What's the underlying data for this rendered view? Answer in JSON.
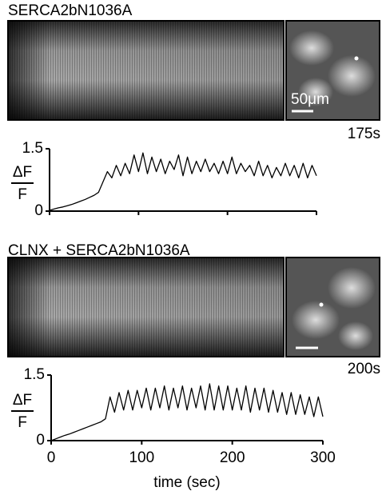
{
  "panels": [
    {
      "label": "SERCA2bN1036A",
      "scale_bar": "50μm",
      "time_label": "175s"
    },
    {
      "label": "CLNX + SERCA2bN1036A",
      "time_label": "200s"
    }
  ],
  "chart_data": [
    {
      "type": "line",
      "ylabel": [
        "ΔF",
        "F"
      ],
      "x": [
        0,
        5,
        10,
        15,
        20,
        25,
        30,
        35,
        40,
        45,
        50,
        55,
        60,
        65,
        70,
        75,
        80,
        85,
        90,
        95,
        100,
        105,
        110,
        115,
        120,
        125,
        130,
        135,
        140,
        145,
        150,
        155,
        160,
        165,
        170,
        175,
        180,
        185,
        190,
        195,
        200,
        205,
        210,
        215,
        220,
        225,
        230,
        235,
        240,
        245,
        250,
        255,
        260,
        265,
        270,
        275,
        280,
        285,
        290,
        295,
        300
      ],
      "series": [
        {
          "color": "#000000",
          "values": [
            0.02,
            0.05,
            0.08,
            0.1,
            0.13,
            0.16,
            0.2,
            0.24,
            0.28,
            0.33,
            0.38,
            0.45,
            0.7,
            0.95,
            0.8,
            1.1,
            0.85,
            1.15,
            0.9,
            1.35,
            0.95,
            1.4,
            0.9,
            1.3,
            0.95,
            1.25,
            0.9,
            1.2,
            1.0,
            1.35,
            0.85,
            1.3,
            0.9,
            1.2,
            0.95,
            1.25,
            0.95,
            1.15,
            0.9,
            1.2,
            0.9,
            1.3,
            0.9,
            1.15,
            0.95,
            1.1,
            0.85,
            1.2,
            0.85,
            1.1,
            0.8,
            1.05,
            0.85,
            1.15,
            0.85,
            1.1,
            0.8,
            1.15,
            0.8,
            1.1,
            0.85
          ]
        }
      ],
      "xlim": [
        0,
        300
      ],
      "ylim": [
        0,
        1.5
      ],
      "yticks": [
        0,
        1.5
      ],
      "xticks": [
        0,
        100,
        200,
        300
      ],
      "xtick_labels": false
    },
    {
      "type": "line",
      "ylabel": [
        "ΔF",
        "F"
      ],
      "xlabel": "time (sec)",
      "x": [
        0,
        5,
        10,
        15,
        20,
        25,
        30,
        35,
        40,
        45,
        50,
        55,
        60,
        65,
        70,
        75,
        80,
        85,
        90,
        95,
        100,
        105,
        110,
        115,
        120,
        125,
        130,
        135,
        140,
        145,
        150,
        155,
        160,
        165,
        170,
        175,
        180,
        185,
        190,
        195,
        200,
        205,
        210,
        215,
        220,
        225,
        230,
        235,
        240,
        245,
        250,
        255,
        260,
        265,
        270,
        275,
        280,
        285,
        290,
        295,
        300
      ],
      "series": [
        {
          "color": "#000000",
          "values": [
            0,
            0.04,
            0.08,
            0.12,
            0.15,
            0.19,
            0.23,
            0.27,
            0.31,
            0.35,
            0.39,
            0.43,
            0.5,
            1.0,
            0.65,
            1.1,
            0.7,
            1.15,
            0.7,
            1.15,
            0.75,
            1.2,
            0.7,
            1.2,
            0.75,
            1.25,
            0.7,
            1.2,
            0.75,
            1.25,
            0.7,
            1.2,
            0.75,
            1.25,
            0.7,
            1.3,
            0.7,
            1.25,
            0.7,
            1.25,
            0.7,
            1.2,
            0.7,
            1.25,
            0.65,
            1.2,
            0.7,
            1.2,
            0.65,
            1.15,
            0.65,
            1.1,
            0.6,
            1.1,
            0.6,
            1.05,
            0.6,
            1.0,
            0.55,
            1.0,
            0.55
          ]
        }
      ],
      "xlim": [
        0,
        300
      ],
      "ylim": [
        0,
        1.5
      ],
      "yticks": [
        0,
        1.5
      ],
      "xticks": [
        0,
        100,
        200,
        300
      ],
      "xtick_labels": true
    }
  ]
}
